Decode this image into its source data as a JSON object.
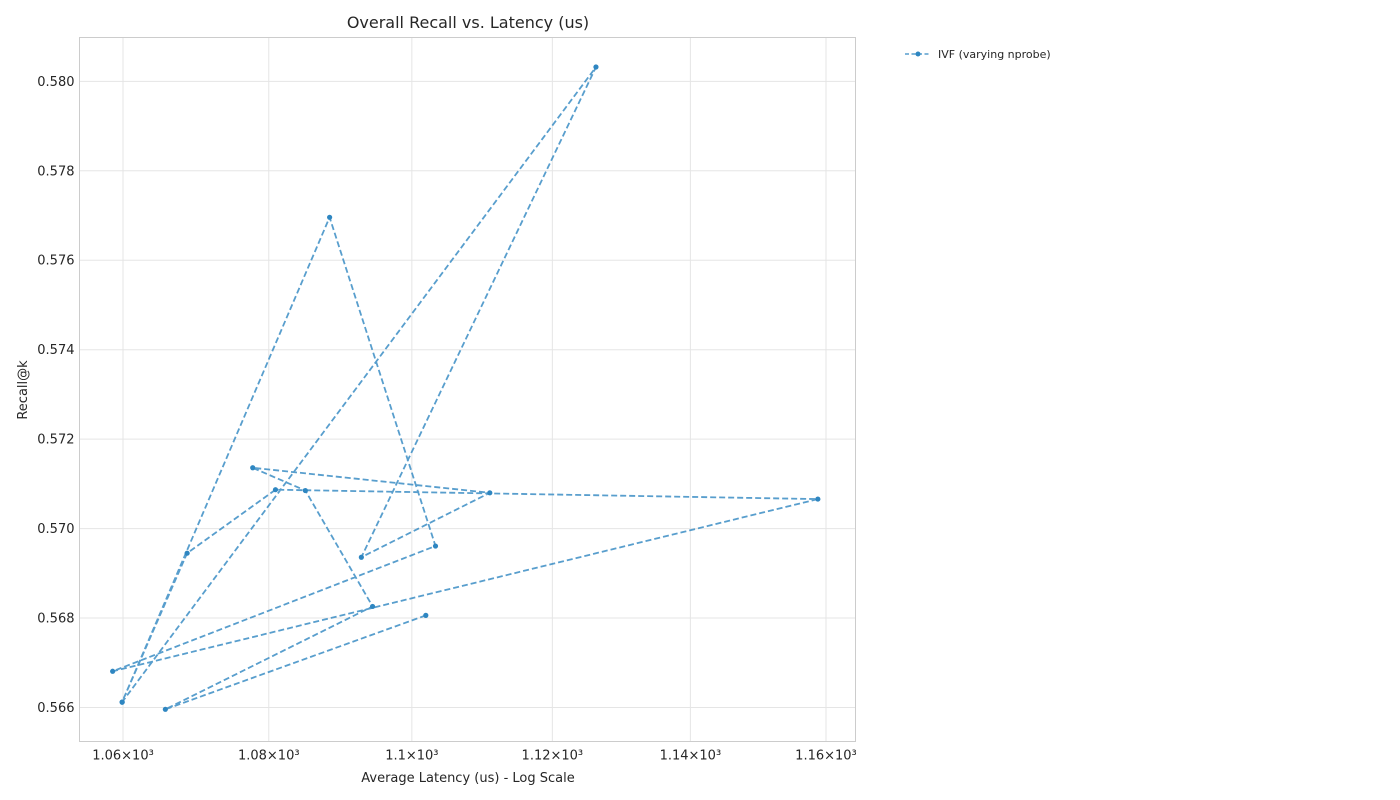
{
  "chart_data": {
    "type": "line",
    "title": "Overall Recall vs. Latency (us)",
    "xlabel": "Average Latency (us) - Log Scale",
    "ylabel": "Recall@k",
    "x_scale": "log",
    "xlim": [
      1054.1,
      1164.4
    ],
    "ylim": [
      0.56524,
      0.58098
    ],
    "x_ticks": [
      {
        "value": 1060,
        "label": "1.06×10³"
      },
      {
        "value": 1080,
        "label": "1.08×10³"
      },
      {
        "value": 1100,
        "label": "1.1×10³"
      },
      {
        "value": 1120,
        "label": "1.12×10³"
      },
      {
        "value": 1140,
        "label": "1.14×10³"
      },
      {
        "value": 1160,
        "label": "1.16×10³"
      }
    ],
    "y_ticks": [
      {
        "value": 0.566,
        "label": "0.566"
      },
      {
        "value": 0.568,
        "label": "0.568"
      },
      {
        "value": 0.57,
        "label": "0.570"
      },
      {
        "value": 0.572,
        "label": "0.572"
      },
      {
        "value": 0.574,
        "label": "0.574"
      },
      {
        "value": 0.576,
        "label": "0.576"
      },
      {
        "value": 0.578,
        "label": "0.578"
      },
      {
        "value": 0.58,
        "label": "0.580"
      }
    ],
    "grid": true,
    "legend_position": "outside-top-right",
    "series": [
      {
        "name": "IVF (varying nprobe)",
        "color": "#2e86c1",
        "line_style": "dashed",
        "marker": "dot",
        "points": [
          {
            "x": 1101.97,
            "y": 0.56806
          },
          {
            "x": 1065.77,
            "y": 0.56596
          },
          {
            "x": 1094.47,
            "y": 0.56826
          },
          {
            "x": 1085.08,
            "y": 0.57085
          },
          {
            "x": 1077.78,
            "y": 0.57136
          },
          {
            "x": 1111.05,
            "y": 0.5708
          },
          {
            "x": 1092.9,
            "y": 0.56936
          },
          {
            "x": 1126.28,
            "y": 0.58032
          },
          {
            "x": 1059.88,
            "y": 0.56612
          },
          {
            "x": 1088.46,
            "y": 0.57696
          },
          {
            "x": 1103.34,
            "y": 0.56961
          },
          {
            "x": 1058.59,
            "y": 0.56681
          },
          {
            "x": 1158.79,
            "y": 0.57066
          },
          {
            "x": 1080.93,
            "y": 0.57087
          },
          {
            "x": 1068.75,
            "y": 0.56945
          },
          {
            "x": 1059.88,
            "y": 0.56612
          }
        ]
      }
    ]
  }
}
